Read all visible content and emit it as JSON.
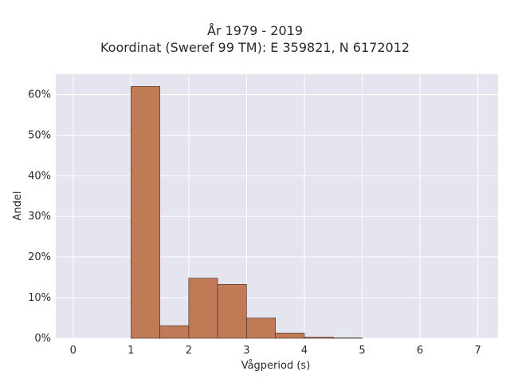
{
  "chart_data": {
    "type": "bar",
    "title": "År 1979 - 2019",
    "subtitle": "Koordinat (Sweref 99 TM): E 359821, N 6172012",
    "xlabel": "Vågperiod (s)",
    "ylabel": "Andel",
    "xlim": [
      -0.3,
      7.35
    ],
    "ylim": [
      0,
      0.65
    ],
    "x_ticks": [
      0,
      1,
      2,
      3,
      4,
      5,
      6,
      7
    ],
    "y_ticks": [
      0,
      0.1,
      0.2,
      0.3,
      0.4,
      0.5,
      0.6
    ],
    "y_tick_labels": [
      "0%",
      "10%",
      "20%",
      "30%",
      "40%",
      "50%",
      "60%"
    ],
    "grid": true,
    "bin_width": 0.5,
    "bins": [
      {
        "x0": 1.0,
        "value": 0.62
      },
      {
        "x0": 1.5,
        "value": 0.031
      },
      {
        "x0": 2.0,
        "value": 0.148
      },
      {
        "x0": 2.5,
        "value": 0.133
      },
      {
        "x0": 3.0,
        "value": 0.05
      },
      {
        "x0": 3.5,
        "value": 0.013
      },
      {
        "x0": 4.0,
        "value": 0.003
      },
      {
        "x0": 4.5,
        "value": 0.001
      }
    ],
    "colors": {
      "bar_fill": "#c17a56",
      "bar_stroke": "#3a2a20",
      "plot_bg": "#e5e5f0",
      "grid": "#ffffff"
    }
  }
}
